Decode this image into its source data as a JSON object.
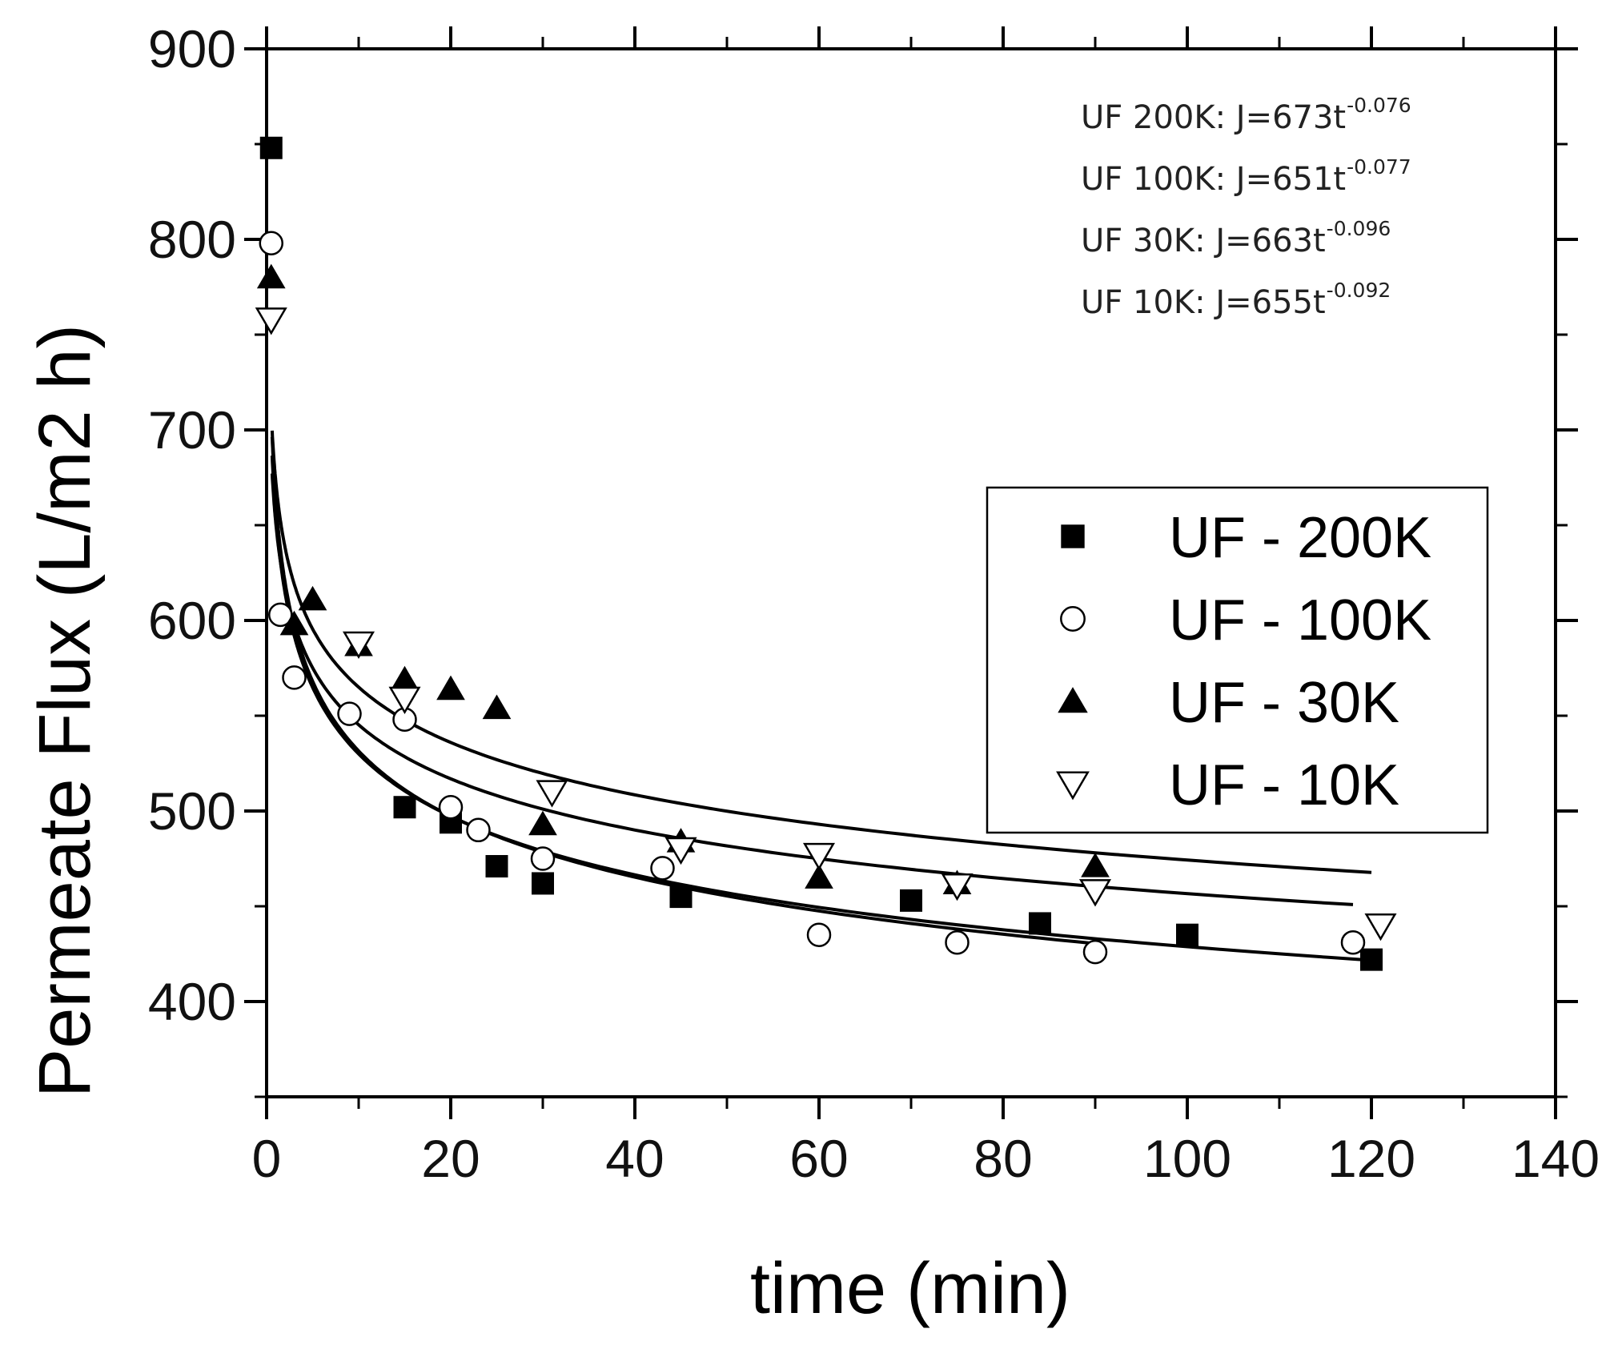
{
  "chart_data": {
    "type": "scatter",
    "title": "",
    "xlabel": "time (min)",
    "ylabel": "Permeate Flux (L/m2 h)",
    "xlim": [
      0,
      140
    ],
    "ylim": [
      350,
      900
    ],
    "x_ticks": [
      0,
      20,
      40,
      60,
      80,
      100,
      120,
      140
    ],
    "y_ticks": [
      400,
      500,
      600,
      700,
      800,
      900
    ],
    "x_tick_labels": [
      "0",
      "20",
      "40",
      "60",
      "80",
      "100",
      "120",
      "140"
    ],
    "y_tick_labels": [
      "400",
      "500",
      "600",
      "700",
      "800",
      "900"
    ],
    "grid": false,
    "legend_position": "center-right",
    "series": [
      {
        "name": "UF - 200K",
        "marker": "filled-square",
        "x": [
          0.5,
          15,
          20,
          25,
          30,
          45,
          70,
          84,
          100,
          120
        ],
        "y": [
          848,
          502,
          494,
          471,
          462,
          455,
          453,
          441,
          435,
          422
        ],
        "fit": {
          "a": 673,
          "b": -0.076
        }
      },
      {
        "name": "UF - 100K",
        "marker": "open-circle",
        "x": [
          0.5,
          1.5,
          3,
          9,
          15,
          20,
          23,
          30,
          43,
          60,
          75,
          90,
          118
        ],
        "y": [
          798,
          603,
          570,
          551,
          548,
          502,
          490,
          475,
          470,
          435,
          431,
          426,
          431
        ],
        "fit": {
          "a": 651,
          "b": -0.077
        }
      },
      {
        "name": "UF - 30K",
        "marker": "filled-triangle-up",
        "x": [
          0.5,
          3,
          5,
          10,
          15,
          20,
          25,
          30,
          45,
          60,
          75,
          90
        ],
        "y": [
          780,
          598,
          611,
          587,
          569,
          564,
          554,
          493,
          484,
          465,
          462,
          471
        ],
        "fit": {
          "a": 663,
          "b": -0.096
        }
      },
      {
        "name": "UF - 10K",
        "marker": "open-triangle-down",
        "x": [
          0.5,
          10,
          15,
          31,
          45,
          60,
          75,
          90,
          121
        ],
        "y": [
          758,
          588,
          559,
          510,
          480,
          477,
          461,
          458,
          440
        ],
        "fit": {
          "a": 655,
          "b": -0.092
        }
      }
    ],
    "annotations": [
      {
        "text": "UF 200K: J=673t",
        "exponent": "-0.076"
      },
      {
        "text": "UF 100K: J=651t",
        "exponent": "-0.077"
      },
      {
        "text": "UF 30K: J=663t",
        "exponent": "-0.096"
      },
      {
        "text": "UF 10K: J=655t",
        "exponent": "-0.092"
      }
    ]
  }
}
